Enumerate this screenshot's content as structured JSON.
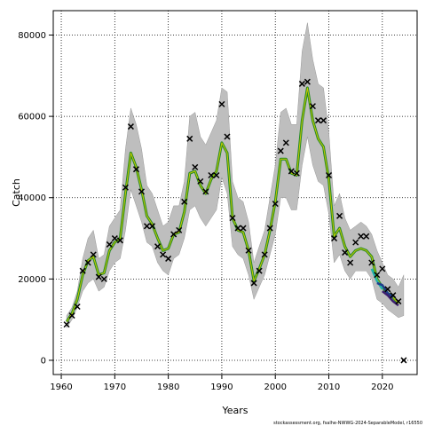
{
  "chart_data": {
    "type": "line",
    "title": "",
    "xlabel": "Years",
    "ylabel": "Catch",
    "xlim": [
      1958.5,
      2026.5
    ],
    "ylim": [
      -3500,
      86000
    ],
    "x_ticks": [
      1960,
      1970,
      1980,
      1990,
      2000,
      2010,
      2020
    ],
    "y_ticks": [
      0,
      20000,
      40000,
      60000,
      80000
    ],
    "x_tick_labels": [
      "1960",
      "1970",
      "1980",
      "1990",
      "2000",
      "2010",
      "2020"
    ],
    "y_tick_labels": [
      "0",
      "20000",
      "40000",
      "60000",
      "80000"
    ],
    "grid": true,
    "legend": "none",
    "credit": "stockassessment.org, fsalhe-NWWG-2024-SeparableModel, r16550",
    "colors": {
      "band": "#bebebe",
      "fit_main": "#228b22",
      "fit_overlay": "#c8c800",
      "retro_cyan": "#20b2aa",
      "retro_blue": "#1e3c8c",
      "retro_purple": "#3c1e6e",
      "markers": "#000000",
      "grid": "#000000"
    },
    "series": [
      {
        "name": "",
        "kind": "observed-points",
        "x": [
          1961,
          1962,
          1963,
          1964,
          1965,
          1966,
          1967,
          1968,
          1969,
          1970,
          1971,
          1972,
          1973,
          1974,
          1975,
          1976,
          1977,
          1978,
          1979,
          1980,
          1981,
          1982,
          1983,
          1984,
          1985,
          1986,
          1987,
          1988,
          1989,
          1990,
          1991,
          1992,
          1993,
          1994,
          1995,
          1996,
          1997,
          1998,
          1999,
          2000,
          2001,
          2002,
          2003,
          2004,
          2005,
          2006,
          2007,
          2008,
          2009,
          2010,
          2011,
          2012,
          2013,
          2014,
          2015,
          2016,
          2017,
          2018,
          2019,
          2020,
          2021,
          2022,
          2023,
          2024
        ],
        "y": [
          8800,
          11000,
          13200,
          22000,
          24000,
          26000,
          20500,
          20000,
          28500,
          30000,
          29500,
          42500,
          57500,
          47000,
          41500,
          33000,
          33000,
          28000,
          26000,
          25000,
          31000,
          32000,
          39000,
          54500,
          47500,
          44000,
          41500,
          45500,
          45500,
          63000,
          55000,
          35000,
          32500,
          32500,
          27000,
          19000,
          22000,
          26000,
          32500,
          38500,
          51500,
          53500,
          46500,
          46000,
          68000,
          68500,
          62500,
          59000,
          59000,
          45500,
          30000,
          35500,
          26500,
          24000,
          29000,
          30500,
          30500,
          24000,
          21000,
          22500,
          17500,
          16000,
          14500,
          0
        ]
      },
      {
        "name": "",
        "kind": "estimate",
        "x": [
          1961,
          1962,
          1963,
          1964,
          1965,
          1966,
          1967,
          1968,
          1969,
          1970,
          1971,
          1972,
          1973,
          1974,
          1975,
          1976,
          1977,
          1978,
          1979,
          1980,
          1981,
          1982,
          1983,
          1984,
          1985,
          1986,
          1987,
          1988,
          1989,
          1990,
          1991,
          1992,
          1993,
          1994,
          1995,
          1996,
          1997,
          1998,
          1999,
          2000,
          2001,
          2002,
          2003,
          2004,
          2005,
          2006,
          2007,
          2008,
          2009,
          2010,
          2011,
          2012,
          2013,
          2014,
          2015,
          2016,
          2017,
          2018,
          2019,
          2020,
          2021,
          2022,
          2023
        ],
        "y": [
          9500,
          11500,
          15000,
          21000,
          24500,
          25500,
          21000,
          21500,
          27000,
          29000,
          30000,
          41000,
          51000,
          47500,
          42000,
          35500,
          33500,
          30000,
          27000,
          27500,
          31000,
          31500,
          36500,
          46000,
          46500,
          43000,
          41000,
          44500,
          46500,
          53500,
          51000,
          35000,
          32000,
          31500,
          27000,
          19500,
          22500,
          26000,
          32000,
          39000,
          49500,
          49500,
          46000,
          45500,
          59000,
          67000,
          59000,
          54500,
          52500,
          44500,
          30500,
          32500,
          28000,
          25500,
          27000,
          27500,
          27000,
          25500,
          20000,
          18000,
          16500,
          15500,
          14000
        ]
      },
      {
        "name": "",
        "kind": "confidence-band",
        "x": [
          1961,
          1962,
          1963,
          1964,
          1965,
          1966,
          1967,
          1968,
          1969,
          1970,
          1971,
          1972,
          1973,
          1974,
          1975,
          1976,
          1977,
          1978,
          1979,
          1980,
          1981,
          1982,
          1983,
          1984,
          1985,
          1986,
          1987,
          1988,
          1989,
          1990,
          1991,
          1992,
          1993,
          1994,
          1995,
          1996,
          1997,
          1998,
          1999,
          2000,
          2001,
          2002,
          2003,
          2004,
          2005,
          2006,
          2007,
          2008,
          2009,
          2010,
          2011,
          2012,
          2013,
          2014,
          2015,
          2016,
          2017,
          2018,
          2019,
          2020,
          2021,
          2022,
          2023,
          2024
        ],
        "lower": [
          8000,
          10000,
          13000,
          17000,
          19000,
          20000,
          17000,
          18000,
          22000,
          24000,
          25000,
          32000,
          42000,
          38000,
          34000,
          29000,
          28000,
          24000,
          22000,
          21000,
          25000,
          26000,
          30000,
          37000,
          38000,
          35000,
          33000,
          35000,
          37000,
          45000,
          41000,
          28000,
          26000,
          25000,
          21000,
          15000,
          18000,
          21000,
          26000,
          31000,
          40000,
          40000,
          37000,
          37000,
          48000,
          55000,
          48000,
          44000,
          43000,
          36000,
          24000,
          26000,
          22000,
          20000,
          22000,
          22000,
          22000,
          20000,
          15000,
          14000,
          12500,
          11500,
          10500,
          11000
        ],
        "upper": [
          11000,
          13000,
          17000,
          25000,
          30000,
          32000,
          25000,
          26000,
          33000,
          35000,
          37000,
          52000,
          62000,
          58000,
          52000,
          43000,
          41000,
          37000,
          33000,
          34000,
          38000,
          38000,
          44000,
          60000,
          61000,
          55000,
          53000,
          56000,
          59000,
          67000,
          66000,
          44000,
          40000,
          39000,
          34000,
          24000,
          28000,
          32000,
          40000,
          48000,
          61000,
          62000,
          58000,
          58000,
          76000,
          83000,
          74000,
          68000,
          67000,
          56000,
          38000,
          41000,
          35000,
          32000,
          33000,
          34000,
          33000,
          31000,
          27000,
          24000,
          21000,
          20000,
          18000,
          21000
        ]
      },
      {
        "name": "",
        "kind": "retro-segment",
        "x": [
          2018,
          2019,
          2020
        ],
        "y": [
          22500,
          19500,
          17500
        ]
      },
      {
        "name": "",
        "kind": "retro-segment",
        "x": [
          2019,
          2020,
          2021,
          2022
        ],
        "y": [
          19000,
          18500,
          16500,
          15500
        ]
      },
      {
        "name": "",
        "kind": "retro-segment",
        "x": [
          2020,
          2021,
          2022,
          2023
        ],
        "y": [
          17000,
          16000,
          14500,
          13500
        ]
      }
    ]
  }
}
